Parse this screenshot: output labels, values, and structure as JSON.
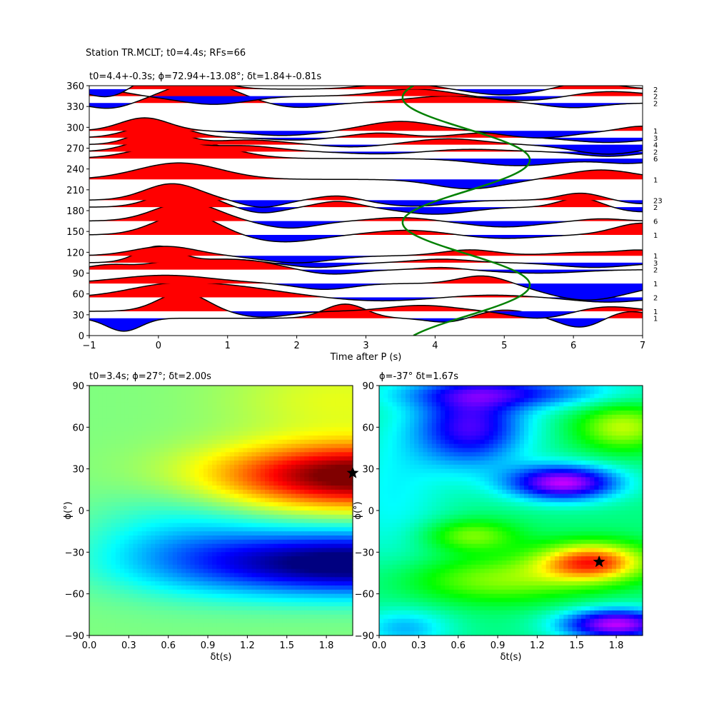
{
  "suptitle": "Station TR.MCLT; t0=4.4s; RFs=66",
  "chart_data": [
    {
      "type": "line",
      "title": "t0=4.4+-0.3s; ϕ=72.94+-13.08°; δt=1.84+-0.81s",
      "xlabel": "Time after P (s)",
      "ylabel": "",
      "xlim": [
        -1,
        7
      ],
      "ylim": [
        0,
        360
      ],
      "xticks": [
        "−1",
        "0",
        "1",
        "2",
        "3",
        "4",
        "5",
        "6",
        "7"
      ],
      "yticks": [
        "0",
        "30",
        "60",
        "90",
        "120",
        "150",
        "180",
        "210",
        "240",
        "270",
        "300",
        "330",
        "360"
      ],
      "positive_fill_color": "#ff0000",
      "negative_fill_color": "#0000ff",
      "model_curve_color": "#008000",
      "traces": [
        {
          "baz": 25,
          "count_label": "1",
          "a": [
            [
              0.0,
              0.5,
              0.45
            ],
            [
              -0.55,
              -0.5,
              0.25
            ],
            [
              0.6,
              2.7,
              0.3
            ],
            [
              -0.2,
              4.2,
              0.3
            ],
            [
              0.35,
              5.0,
              0.4
            ],
            [
              -0.4,
              6.1,
              0.3
            ],
            [
              0.3,
              6.8,
              0.3
            ]
          ]
        },
        {
          "baz": 35,
          "count_label": "1",
          "a": [
            [
              0.8,
              0.35,
              0.35
            ],
            [
              -0.25,
              1.5,
              0.4
            ],
            [
              0.25,
              3.8,
              0.5
            ],
            [
              -0.3,
              5.5,
              0.4
            ],
            [
              0.2,
              6.5,
              0.4
            ]
          ]
        },
        {
          "baz": 55,
          "count_label": "2",
          "a": [
            [
              0.45,
              0.1,
              0.6
            ],
            [
              0.4,
              1.1,
              0.7
            ],
            [
              -0.15,
              3.2,
              0.6
            ],
            [
              0.1,
              4.8,
              0.5
            ],
            [
              -0.2,
              6.5,
              0.5
            ]
          ]
        },
        {
          "baz": 75,
          "count_label": "1",
          "a": [
            [
              0.35,
              0.1,
              0.7
            ],
            [
              -0.25,
              2.4,
              0.4
            ],
            [
              0.35,
              4.7,
              0.35
            ],
            [
              -0.7,
              6.2,
              0.6
            ]
          ]
        },
        {
          "baz": 95,
          "count_label": "2",
          "a": [
            [
              0.2,
              -0.7,
              0.3
            ],
            [
              0.35,
              0.25,
              0.4
            ],
            [
              0.4,
              1.2,
              0.5
            ],
            [
              -0.2,
              2.5,
              0.4
            ],
            [
              0.1,
              4.1,
              0.3
            ],
            [
              -0.15,
              5.5,
              0.6
            ]
          ]
        },
        {
          "baz": 105,
          "count_label": "3",
          "a": [
            [
              0.7,
              0.0,
              0.3
            ],
            [
              0.15,
              1.0,
              0.4
            ],
            [
              -0.2,
              2.3,
              0.4
            ],
            [
              0.15,
              4.1,
              0.4
            ],
            [
              -0.2,
              6.3,
              0.5
            ]
          ]
        },
        {
          "baz": 115,
          "count_label": "1",
          "a": [
            [
              0.4,
              0.1,
              0.45
            ],
            [
              -0.3,
              2.0,
              0.5
            ],
            [
              0.25,
              4.5,
              0.4
            ],
            [
              0.15,
              6.2,
              0.5
            ],
            [
              0.2,
              7.0,
              0.3
            ]
          ]
        },
        {
          "baz": 145,
          "count_label": "1",
          "a": [
            [
              0.9,
              0.4,
              0.45
            ],
            [
              -0.3,
              1.8,
              0.5
            ],
            [
              0.2,
              3.6,
              0.5
            ],
            [
              -0.15,
              5.0,
              0.5
            ],
            [
              0.5,
              7.0,
              0.4
            ]
          ]
        },
        {
          "baz": 165,
          "count_label": "6",
          "a": [
            [
              0.8,
              0.4,
              0.45
            ],
            [
              -0.3,
              1.9,
              0.4
            ],
            [
              0.15,
              3.5,
              0.4
            ],
            [
              -0.25,
              5.0,
              0.5
            ],
            [
              0.1,
              6.4,
              0.3
            ]
          ]
        },
        {
          "baz": 185,
          "count_label": "2",
          "a": [
            [
              0.75,
              0.35,
              0.4
            ],
            [
              -0.25,
              1.5,
              0.3
            ],
            [
              0.25,
              2.6,
              0.3
            ],
            [
              -0.3,
              4.0,
              0.5
            ],
            [
              0.4,
              6.1,
              0.3
            ],
            [
              -0.2,
              7.0,
              0.4
            ]
          ]
        },
        {
          "baz": 195,
          "count_label": "23",
          "a": [
            [
              0.7,
              0.2,
              0.4
            ],
            [
              -0.3,
              1.5,
              0.3
            ],
            [
              0.2,
              2.6,
              0.3
            ],
            [
              -0.25,
              3.7,
              0.5
            ],
            [
              0.3,
              6.1,
              0.3
            ],
            [
              -0.15,
              7.0,
              0.3
            ]
          ]
        },
        {
          "baz": 225,
          "count_label": "1",
          "a": [
            [
              0.7,
              0.3,
              0.6
            ],
            [
              -0.4,
              4.5,
              0.5
            ],
            [
              0.4,
              6.4,
              0.5
            ]
          ]
        },
        {
          "baz": 255,
          "count_label": "6",
          "a": [
            [
              0.75,
              0.4,
              0.6
            ],
            [
              -0.3,
              5.2,
              0.6
            ],
            [
              -0.2,
              6.8,
              0.4
            ]
          ]
        },
        {
          "baz": 265,
          "count_label": "2",
          "a": [
            [
              0.6,
              0.0,
              0.4
            ],
            [
              0.25,
              1.2,
              0.5
            ],
            [
              -0.1,
              3.2,
              0.5
            ],
            [
              0.1,
              4.5,
              0.5
            ],
            [
              -0.2,
              6.5,
              0.4
            ]
          ]
        },
        {
          "baz": 275,
          "count_label": "4",
          "a": [
            [
              0.7,
              0.0,
              0.35
            ],
            [
              0.2,
              1.3,
              0.5
            ],
            [
              -0.1,
              2.8,
              0.4
            ],
            [
              0.25,
              4.2,
              0.5
            ],
            [
              -0.4,
              6.5,
              0.5
            ]
          ]
        },
        {
          "baz": 285,
          "count_label": "3",
          "a": [
            [
              0.6,
              0.0,
              0.4
            ],
            [
              -0.1,
              2.0,
              0.4
            ],
            [
              0.2,
              3.2,
              0.4
            ],
            [
              0.2,
              4.7,
              0.4
            ],
            [
              -0.2,
              6.5,
              0.5
            ]
          ]
        },
        {
          "baz": 295,
          "count_label": "1",
          "a": [
            [
              0.55,
              -0.2,
              0.35
            ],
            [
              -0.2,
              1.8,
              0.5
            ],
            [
              0.4,
              3.5,
              0.5
            ],
            [
              -0.3,
              5.5,
              0.5
            ],
            [
              0.2,
              7.0,
              0.3
            ]
          ]
        },
        {
          "baz": 335,
          "count_label": "2",
          "a": [
            [
              -0.25,
              -0.7,
              0.3
            ],
            [
              0.9,
              0.6,
              0.5
            ],
            [
              -0.2,
              2.0,
              0.4
            ],
            [
              0.3,
              4.2,
              0.6
            ],
            [
              -0.2,
              6.0,
              0.4
            ]
          ]
        },
        {
          "baz": 345,
          "count_label": "2",
          "a": [
            [
              0.25,
              -0.8,
              0.35
            ],
            [
              -0.35,
              0.8,
              0.5
            ],
            [
              0.3,
              3.7,
              0.5
            ],
            [
              -0.2,
              5.3,
              0.5
            ],
            [
              0.2,
              6.5,
              0.5
            ]
          ]
        },
        {
          "baz": 355,
          "count_label": "2",
          "a": [
            [
              -0.4,
              -0.7,
              0.3
            ],
            [
              0.9,
              0.25,
              0.45
            ],
            [
              0.25,
              3.5,
              0.5
            ],
            [
              -0.25,
              5.0,
              0.5
            ],
            [
              0.3,
              6.2,
              0.4
            ]
          ]
        }
      ],
      "model_curve": {
        "description": "t = 4.4 + 0.8*cos(2*(baz - 72.94 deg)) approx; green curve",
        "mean": 4.45,
        "amplitude": 0.92,
        "phase_deg": 72.94
      }
    },
    {
      "type": "heatmap",
      "title": "t0=3.4s; ϕ=27°; δt=2.00s",
      "xlabel": "δt(s)",
      "ylabel": "ϕ(°)",
      "xlim": [
        0,
        2
      ],
      "ylim": [
        -90,
        90
      ],
      "xticks": [
        "0.0",
        "0.3",
        "0.6",
        "0.9",
        "1.2",
        "1.5",
        "1.8"
      ],
      "yticks": [
        "−90",
        "−60",
        "−30",
        "0",
        "30",
        "60",
        "90"
      ],
      "colormap": "jet",
      "best": {
        "dt": 2.0,
        "phi": 27
      }
    },
    {
      "type": "heatmap",
      "title": "ϕ=-37° δt=1.67s",
      "xlabel": "δt(s)",
      "ylabel": "ϕ(°)",
      "xlim": [
        0,
        2
      ],
      "ylim": [
        -90,
        90
      ],
      "xticks": [
        "0.0",
        "0.3",
        "0.6",
        "0.9",
        "1.2",
        "1.5",
        "1.8"
      ],
      "yticks": [
        "−90",
        "−60",
        "−30",
        "0",
        "30",
        "60",
        "90"
      ],
      "colormap": "hsv",
      "best": {
        "dt": 1.67,
        "phi": -37
      }
    }
  ]
}
